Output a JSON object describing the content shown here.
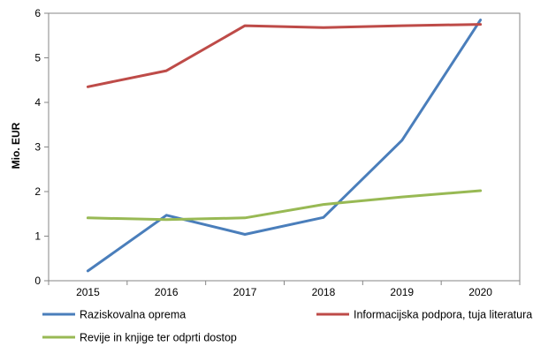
{
  "chart_data": {
    "type": "line",
    "categories": [
      "2015",
      "2016",
      "2017",
      "2018",
      "2019",
      "2020"
    ],
    "ylabel": "Mio. EUR",
    "ylim": [
      0,
      6
    ],
    "yticks": [
      "0",
      "1",
      "2",
      "3",
      "4",
      "5",
      "6"
    ],
    "grid": false,
    "legend_position": "bottom",
    "series": [
      {
        "name": "Raziskovalna oprema",
        "color": "#4a7ebb",
        "values": [
          0.22,
          1.47,
          1.04,
          1.42,
          3.15,
          5.85
        ]
      },
      {
        "name": "Informacijska podpora, tuja literatura",
        "color": "#be4b48",
        "values": [
          4.35,
          4.71,
          5.72,
          5.68,
          5.72,
          5.75
        ]
      },
      {
        "name": "Revije in knjige ter odprti dostop",
        "color": "#98b954",
        "values": [
          1.41,
          1.37,
          1.41,
          1.71,
          1.88,
          2.02
        ]
      }
    ]
  }
}
